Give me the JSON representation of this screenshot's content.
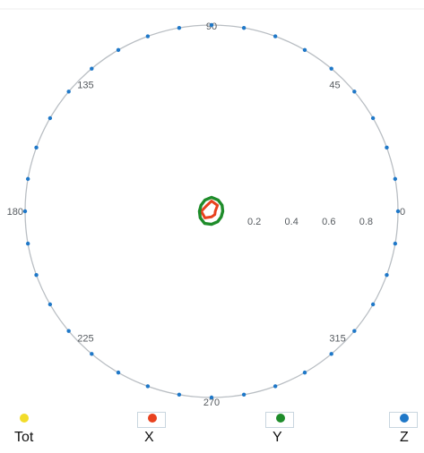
{
  "chart_data": {
    "type": "scatter",
    "projection": "polar",
    "angle_ticks": [
      "0",
      "45",
      "90",
      "135",
      "180",
      "225",
      "270",
      "315"
    ],
    "radial_ticks": [
      "0.2",
      "0.4",
      "0.6",
      "0.8"
    ],
    "rlim": [
      0,
      1
    ],
    "grid": false,
    "legend_position": "bottom",
    "series": [
      {
        "name": "Tot",
        "color": "#f2dc2a",
        "shape": "dot",
        "theta": [],
        "r": []
      },
      {
        "name": "X",
        "color": "#e8411e",
        "shape": "curve",
        "theta": [
          0,
          45,
          90,
          135,
          180,
          225,
          270,
          315,
          360
        ],
        "r": [
          0.02,
          0.045,
          0.055,
          0.04,
          0.055,
          0.05,
          0.03,
          0.025,
          0.02
        ]
      },
      {
        "name": "Y",
        "color": "#1e8c2a",
        "shape": "curve",
        "theta": [
          0,
          30,
          60,
          90,
          120,
          150,
          180,
          210,
          240,
          270,
          300,
          330,
          360
        ],
        "r": [
          0.06,
          0.065,
          0.07,
          0.075,
          0.07,
          0.065,
          0.065,
          0.07,
          0.075,
          0.07,
          0.065,
          0.06,
          0.06
        ]
      },
      {
        "name": "Z",
        "color": "#1f78c8",
        "shape": "points",
        "theta": [
          0,
          10,
          20,
          30,
          40,
          50,
          60,
          70,
          80,
          90,
          100,
          110,
          120,
          130,
          140,
          150,
          160,
          170,
          180,
          190,
          200,
          210,
          220,
          230,
          240,
          250,
          260,
          270,
          280,
          290,
          300,
          310,
          320,
          330,
          340,
          350
        ],
        "r": [
          1,
          1,
          1,
          1,
          1,
          1,
          1,
          1,
          1,
          1,
          1,
          1,
          1,
          1,
          1,
          1,
          1,
          1,
          1,
          1,
          1,
          1,
          1,
          1,
          1,
          1,
          1,
          1,
          1,
          1,
          1,
          1,
          1,
          1,
          1,
          1
        ]
      }
    ]
  }
}
